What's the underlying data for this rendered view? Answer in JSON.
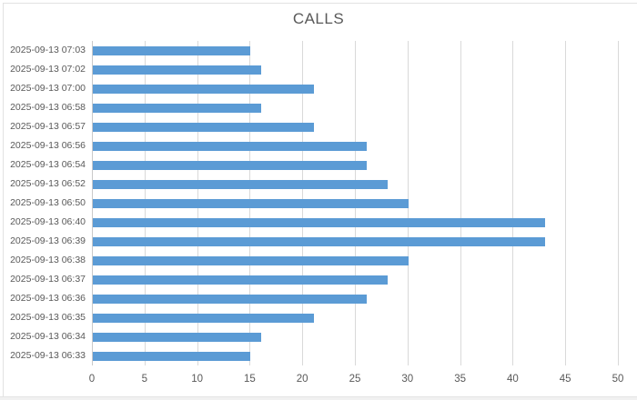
{
  "window": {
    "background_color": "#ffffff",
    "frame_border_color": "#e2e2e2",
    "bottom_strip_color": "#f1f1f1",
    "bottom_strip_border_color": "#e4e4e4"
  },
  "chart_data": {
    "type": "bar",
    "orientation": "horizontal",
    "title": "CALLS",
    "categories": [
      "2025-09-13 07:03",
      "2025-09-13 07:02",
      "2025-09-13 07:00",
      "2025-09-13 06:58",
      "2025-09-13 06:57",
      "2025-09-13 06:56",
      "2025-09-13 06:54",
      "2025-09-13 06:52",
      "2025-09-13 06:50",
      "2025-09-13 06:40",
      "2025-09-13 06:39",
      "2025-09-13 06:38",
      "2025-09-13 06:37",
      "2025-09-13 06:36",
      "2025-09-13 06:35",
      "2025-09-13 06:34",
      "2025-09-13 06:33"
    ],
    "values": [
      15,
      16,
      21,
      16,
      21,
      26,
      26,
      28,
      30,
      43,
      43,
      30,
      28,
      26,
      21,
      16,
      15
    ],
    "xlabel": "",
    "ylabel": "",
    "xlim": [
      0,
      50
    ],
    "xticks": [
      0,
      5,
      10,
      15,
      20,
      25,
      30,
      35,
      40,
      45,
      50
    ],
    "grid": "vertical",
    "legend_position": "none",
    "bar_color": "#5b9bd5",
    "gridline_color": "#d9d9d9",
    "axis_line_color": "#c9c9c9",
    "label_color": "#595959",
    "title_color": "#595959"
  }
}
